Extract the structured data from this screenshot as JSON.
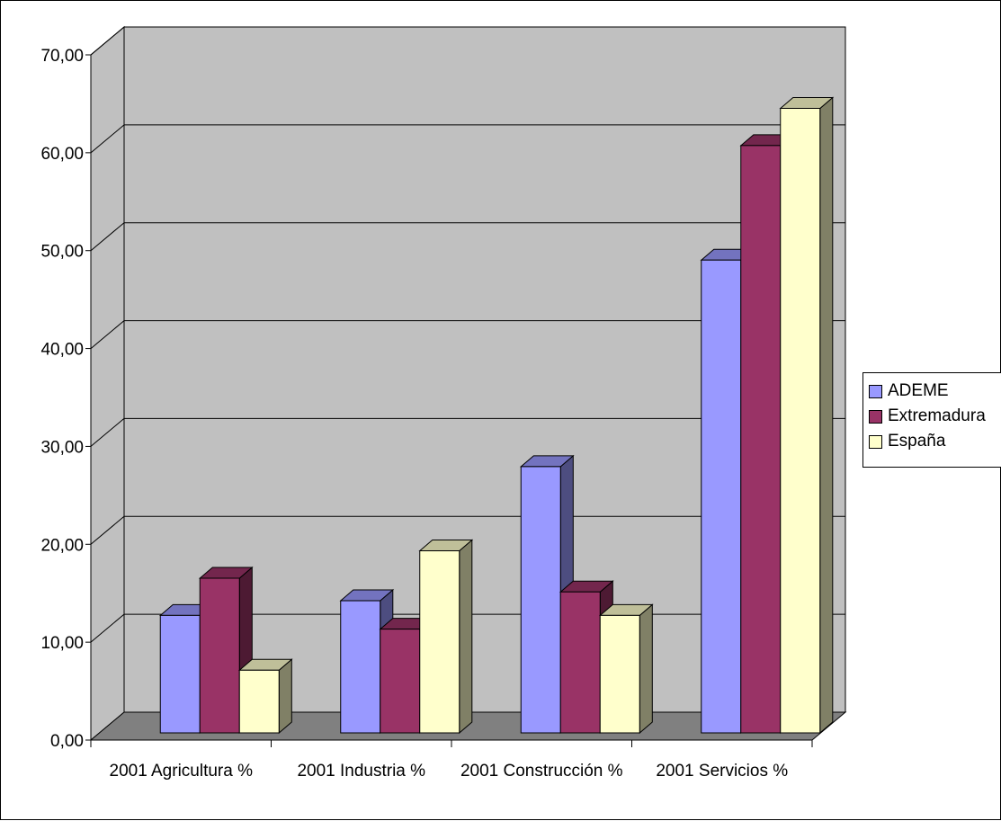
{
  "chart_data": {
    "type": "bar",
    "categories": [
      "2001 Agricultura %",
      "2001 Industria %",
      "2001 Construcción %",
      "2001 Servicios %"
    ],
    "series": [
      {
        "name": "ADEME",
        "values": [
          12.0,
          13.5,
          27.2,
          48.3
        ],
        "color": "#9999ff"
      },
      {
        "name": "Extremadura",
        "values": [
          15.8,
          10.6,
          14.4,
          60.0
        ],
        "color": "#993366"
      },
      {
        "name": "España",
        "values": [
          6.4,
          18.6,
          12.0,
          63.8
        ],
        "color": "#ffffcc"
      }
    ],
    "y_tick_labels": [
      "0,00",
      "10,00",
      "20,00",
      "30,00",
      "40,00",
      "50,00",
      "60,00",
      "70,00"
    ],
    "ylim": [
      0,
      70
    ],
    "grid": true,
    "legend_position": "right",
    "style": "3d-clustered-column",
    "wall_color": "#c0c0c0",
    "floor_color": "#808080"
  }
}
